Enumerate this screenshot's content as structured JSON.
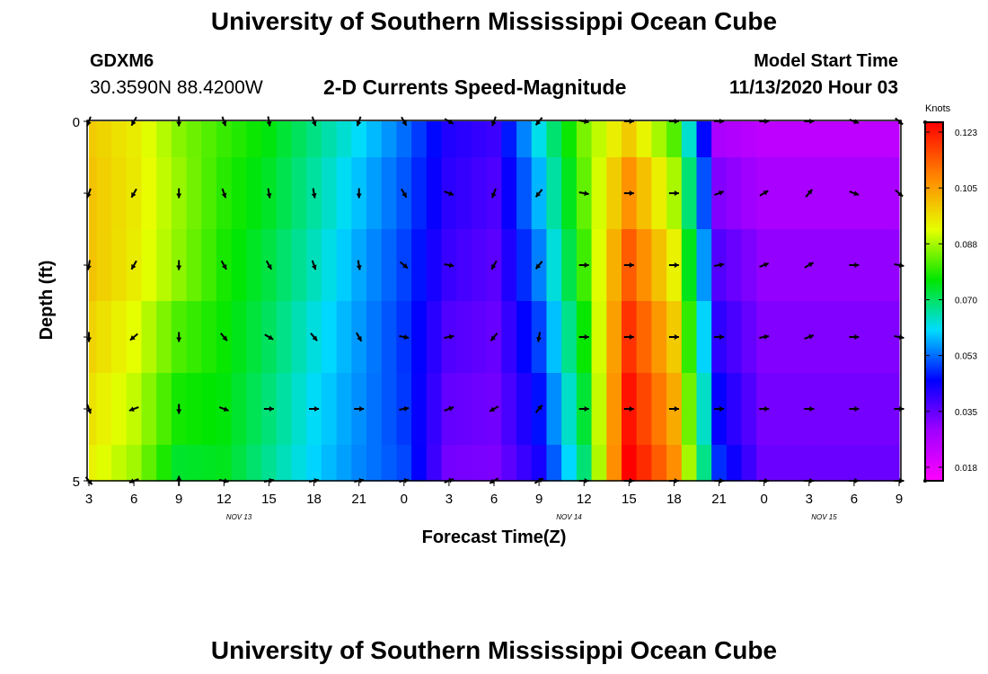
{
  "header": {
    "title": "University of Southern Mississippi Ocean Cube",
    "station": "GDXM6",
    "coordinates": "30.3590N 88.4200W",
    "subtitle": "2-D Currents Speed-Magnitude",
    "model_start_label": "Model Start Time",
    "model_start_value": "11/13/2020 Hour 03"
  },
  "footer": {
    "title": "University of Southern Mississippi Ocean Cube"
  },
  "chart_data": {
    "type": "heatmap",
    "title": "2-D Currents Speed-Magnitude",
    "xlabel": "Forecast Time(Z)",
    "ylabel": "Depth (ft)",
    "x_hours": [
      3,
      4,
      5,
      6,
      7,
      8,
      9,
      10,
      11,
      12,
      13,
      14,
      15,
      16,
      17,
      18,
      19,
      20,
      21,
      22,
      23,
      0,
      1,
      2,
      3,
      4,
      5,
      6,
      7,
      8,
      9,
      10,
      11,
      12,
      13,
      14,
      15,
      16,
      17,
      18,
      19,
      20,
      21,
      22,
      23,
      0,
      1,
      2,
      3,
      4,
      5,
      6,
      7,
      8,
      9
    ],
    "x_tick_labels": [
      "3",
      "6",
      "9",
      "12",
      "15",
      "18",
      "21",
      "0",
      "3",
      "6",
      "9",
      "12",
      "15",
      "18",
      "21",
      "0",
      "3",
      "6",
      "9"
    ],
    "x_tick_index": [
      0,
      3,
      6,
      9,
      12,
      15,
      18,
      21,
      24,
      27,
      30,
      33,
      36,
      39,
      42,
      45,
      48,
      51,
      54
    ],
    "date_labels": [
      "NOV 13",
      "NOV 14",
      "NOV 15"
    ],
    "date_label_index": [
      10,
      32,
      49
    ],
    "depth_ticks": [
      "0",
      "5"
    ],
    "depth_levels": [
      0,
      1,
      2,
      3,
      4,
      5
    ],
    "colorbar": {
      "units": "Knots",
      "ticks": [
        "0.123",
        "0.105",
        "0.088",
        "0.070",
        "0.053",
        "0.035",
        "0.018"
      ],
      "range": [
        0.009,
        0.132
      ]
    },
    "speed_profiles": [
      [
        0.103,
        0.098,
        0.088,
        0.082,
        0.077,
        0.069,
        0.061,
        0.052,
        0.04,
        0.037,
        0.062,
        0.087,
        0.103,
        0.084,
        0.024,
        0.021
      ],
      [
        0.105,
        0.099,
        0.09,
        0.08,
        0.074,
        0.066,
        0.057,
        0.049,
        0.038,
        0.034,
        0.055,
        0.084,
        0.117,
        0.095,
        0.033,
        0.027
      ],
      [
        0.101,
        0.094,
        0.082,
        0.078,
        0.071,
        0.062,
        0.055,
        0.047,
        0.034,
        0.032,
        0.047,
        0.077,
        0.127,
        0.105,
        0.04,
        0.03
      ],
      [
        0.097,
        0.09,
        0.075,
        0.076,
        0.068,
        0.06,
        0.054,
        0.049,
        0.031,
        0.03,
        0.041,
        0.07,
        0.133,
        0.112,
        0.047,
        0.032
      ]
    ],
    "speed_profile_hours_index": [
      0,
      3,
      6,
      9,
      12,
      15,
      18,
      21,
      24,
      27,
      30,
      33,
      36,
      39,
      42,
      45
    ],
    "vector_times_index": [
      0,
      3,
      6,
      9,
      12,
      15,
      18,
      21,
      24,
      27,
      30,
      33,
      36,
      39,
      42,
      45,
      48,
      51,
      54
    ],
    "vector_directions_deg": [
      [
        200,
        210,
        180,
        160,
        170,
        160,
        200,
        150,
        120,
        200,
        220,
        100,
        90,
        90,
        90,
        90,
        90,
        110,
        130
      ],
      [
        200,
        210,
        180,
        160,
        170,
        170,
        180,
        150,
        110,
        200,
        220,
        100,
        90,
        90,
        70,
        60,
        40,
        110,
        130
      ],
      [
        190,
        210,
        180,
        150,
        150,
        160,
        170,
        130,
        100,
        210,
        220,
        90,
        90,
        90,
        80,
        70,
        60,
        90,
        100
      ],
      [
        180,
        230,
        180,
        140,
        120,
        140,
        150,
        100,
        80,
        220,
        190,
        90,
        90,
        90,
        90,
        80,
        70,
        90,
        100
      ],
      [
        160,
        250,
        180,
        110,
        90,
        90,
        90,
        80,
        70,
        240,
        40,
        90,
        90,
        90,
        90,
        90,
        90,
        90,
        90
      ],
      [
        140,
        250,
        0,
        100,
        80,
        80,
        80,
        80,
        70,
        240,
        60,
        90,
        90,
        90,
        90,
        90,
        90,
        90,
        90
      ]
    ]
  }
}
